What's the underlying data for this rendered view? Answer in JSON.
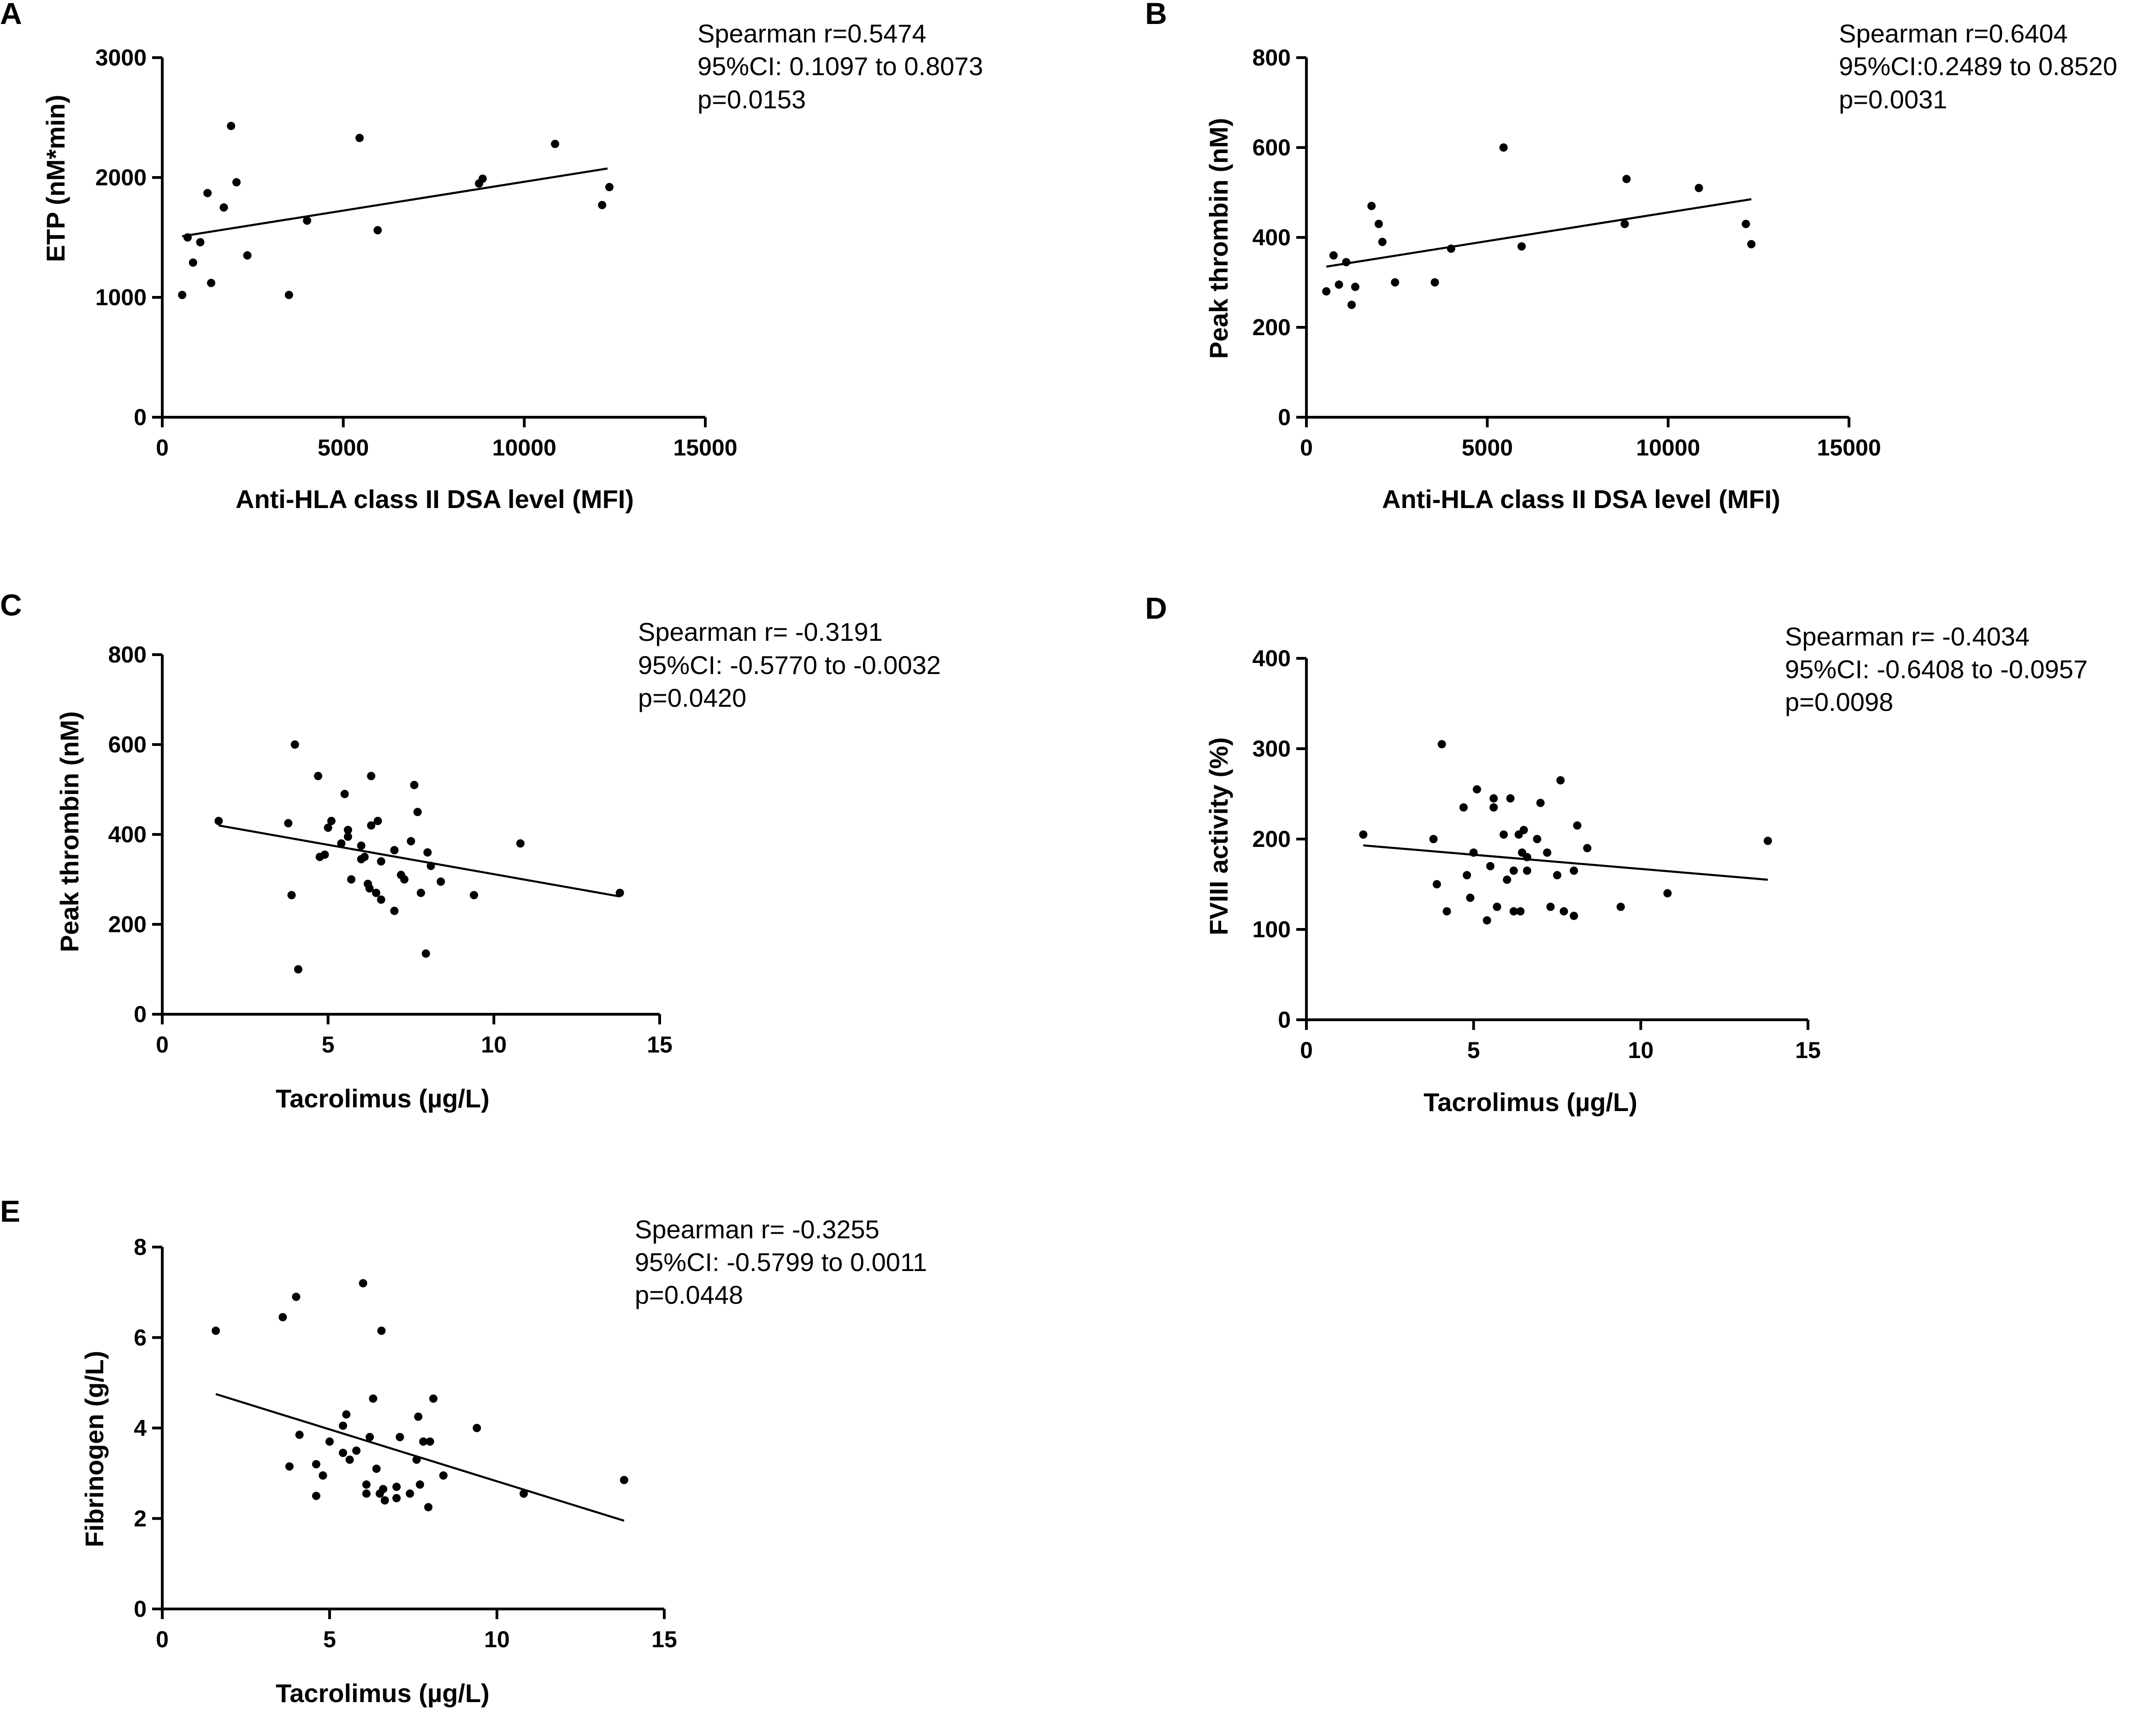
{
  "chart_data": [
    {
      "type": "scatter",
      "panel": "A",
      "xlabel": "Anti-HLA class II DSA level (MFI)",
      "ylabel": "ETP (nM*min)",
      "xlim": [
        0,
        15000
      ],
      "ylim": [
        0,
        3000
      ],
      "xticks": [
        0,
        5000,
        10000,
        15000
      ],
      "yticks": [
        0,
        1000,
        2000,
        3000
      ],
      "stats": [
        "Spearman r=0.5474",
        "95%CI: 0.1097 to 0.8073",
        "p=0.0153"
      ],
      "points": [
        [
          550,
          1020
        ],
        [
          700,
          1500
        ],
        [
          850,
          1290
        ],
        [
          1050,
          1460
        ],
        [
          1250,
          1870
        ],
        [
          1350,
          1120
        ],
        [
          1700,
          1750
        ],
        [
          1900,
          2430
        ],
        [
          2050,
          1960
        ],
        [
          2350,
          1350
        ],
        [
          3500,
          1020
        ],
        [
          4000,
          1640
        ],
        [
          5450,
          2330
        ],
        [
          5950,
          1560
        ],
        [
          8750,
          1950
        ],
        [
          8850,
          1990
        ],
        [
          10850,
          2280
        ],
        [
          12150,
          1770
        ],
        [
          12350,
          1920
        ]
      ],
      "fit": [
        [
          550,
          1510
        ],
        [
          12300,
          2075
        ]
      ]
    },
    {
      "type": "scatter",
      "panel": "B",
      "xlabel": "Anti-HLA class II DSA level (MFI)",
      "ylabel": "Peak thrombin (nM)",
      "xlim": [
        0,
        15000
      ],
      "ylim": [
        0,
        800
      ],
      "xticks": [
        0,
        5000,
        10000,
        15000
      ],
      "yticks": [
        0,
        200,
        400,
        600,
        800
      ],
      "stats": [
        "Spearman r=0.6404",
        "95%CI:0.2489 to 0.8520",
        "p=0.0031"
      ],
      "points": [
        [
          550,
          280
        ],
        [
          750,
          360
        ],
        [
          900,
          295
        ],
        [
          1100,
          345
        ],
        [
          1250,
          250
        ],
        [
          1350,
          290
        ],
        [
          1800,
          470
        ],
        [
          2000,
          430
        ],
        [
          2100,
          390
        ],
        [
          2450,
          300
        ],
        [
          3550,
          300
        ],
        [
          4000,
          375
        ],
        [
          5450,
          600
        ],
        [
          5950,
          380
        ],
        [
          8800,
          430
        ],
        [
          8850,
          530
        ],
        [
          10850,
          510
        ],
        [
          12150,
          430
        ],
        [
          12300,
          385
        ]
      ],
      "fit": [
        [
          550,
          335
        ],
        [
          12300,
          485
        ]
      ]
    },
    {
      "type": "scatter",
      "panel": "C",
      "xlabel": "Tacrolimus (µg/L)",
      "ylabel": "Peak thrombin (nM)",
      "xlim": [
        0,
        15
      ],
      "ylim": [
        0,
        800
      ],
      "xticks": [
        0,
        5,
        10,
        15
      ],
      "yticks": [
        0,
        200,
        400,
        600,
        800
      ],
      "stats": [
        "Spearman r= -0.3191",
        "95%CI: -0.5770 to -0.0032",
        "p=0.0420"
      ],
      "points": [
        [
          1.7,
          430
        ],
        [
          3.8,
          425
        ],
        [
          3.9,
          265
        ],
        [
          4.0,
          600
        ],
        [
          4.1,
          100
        ],
        [
          4.7,
          530
        ],
        [
          4.75,
          350
        ],
        [
          4.9,
          355
        ],
        [
          5.0,
          415
        ],
        [
          5.1,
          430
        ],
        [
          5.4,
          380
        ],
        [
          5.5,
          490
        ],
        [
          5.6,
          395
        ],
        [
          5.6,
          410
        ],
        [
          5.7,
          300
        ],
        [
          6.0,
          345
        ],
        [
          6.0,
          375
        ],
        [
          6.1,
          350
        ],
        [
          6.2,
          290
        ],
        [
          6.25,
          280
        ],
        [
          6.3,
          420
        ],
        [
          6.3,
          530
        ],
        [
          6.45,
          270
        ],
        [
          6.5,
          430
        ],
        [
          6.6,
          340
        ],
        [
          6.6,
          255
        ],
        [
          7.0,
          365
        ],
        [
          7.0,
          230
        ],
        [
          7.2,
          310
        ],
        [
          7.3,
          300
        ],
        [
          7.5,
          385
        ],
        [
          7.6,
          510
        ],
        [
          7.7,
          450
        ],
        [
          7.8,
          270
        ],
        [
          7.95,
          135
        ],
        [
          8.0,
          360
        ],
        [
          8.1,
          330
        ],
        [
          8.4,
          295
        ],
        [
          9.4,
          265
        ],
        [
          10.8,
          380
        ],
        [
          13.8,
          270
        ]
      ],
      "fit": [
        [
          1.7,
          420
        ],
        [
          13.8,
          262
        ]
      ]
    },
    {
      "type": "scatter",
      "panel": "D",
      "xlabel": "Tacrolimus (µg/L)",
      "ylabel": "FVIII activity (%)",
      "xlim": [
        0,
        15
      ],
      "ylim": [
        0,
        400
      ],
      "xticks": [
        0,
        5,
        10,
        15
      ],
      "yticks": [
        0,
        100,
        200,
        300,
        400
      ],
      "stats": [
        "Spearman r= -0.4034",
        "95%CI: -0.6408 to -0.0957",
        "p=0.0098"
      ],
      "points": [
        [
          1.7,
          205
        ],
        [
          3.8,
          200
        ],
        [
          3.9,
          150
        ],
        [
          4.05,
          305
        ],
        [
          4.2,
          120
        ],
        [
          4.7,
          235
        ],
        [
          4.8,
          160
        ],
        [
          4.9,
          135
        ],
        [
          5.0,
          185
        ],
        [
          5.1,
          255
        ],
        [
          5.4,
          110
        ],
        [
          5.5,
          170
        ],
        [
          5.6,
          235
        ],
        [
          5.6,
          245
        ],
        [
          5.7,
          125
        ],
        [
          5.9,
          205
        ],
        [
          6.0,
          155
        ],
        [
          6.1,
          245
        ],
        [
          6.2,
          120
        ],
        [
          6.2,
          165
        ],
        [
          6.35,
          205
        ],
        [
          6.4,
          120
        ],
        [
          6.45,
          185
        ],
        [
          6.5,
          210
        ],
        [
          6.6,
          180
        ],
        [
          6.6,
          165
        ],
        [
          6.9,
          200
        ],
        [
          7.0,
          240
        ],
        [
          7.2,
          185
        ],
        [
          7.3,
          125
        ],
        [
          7.5,
          160
        ],
        [
          7.6,
          265
        ],
        [
          7.7,
          120
        ],
        [
          8.0,
          115
        ],
        [
          8.0,
          165
        ],
        [
          8.1,
          215
        ],
        [
          8.4,
          190
        ],
        [
          9.4,
          125
        ],
        [
          10.8,
          140
        ],
        [
          13.8,
          198
        ]
      ],
      "fit": [
        [
          1.7,
          193
        ],
        [
          13.8,
          155
        ]
      ]
    },
    {
      "type": "scatter",
      "panel": "E",
      "xlabel": "Tacrolimus (µg/L)",
      "ylabel": "Fibrinogen (g/L)",
      "xlim": [
        0,
        15
      ],
      "ylim": [
        0,
        8
      ],
      "xticks": [
        0,
        5,
        10,
        15
      ],
      "yticks": [
        0,
        2,
        4,
        6,
        8
      ],
      "stats": [
        "Spearman r= -0.3255",
        "95%CI: -0.5799 to 0.0011",
        "p=0.0448"
      ],
      "points": [
        [
          1.6,
          6.15
        ],
        [
          3.6,
          6.45
        ],
        [
          3.8,
          3.15
        ],
        [
          4.0,
          6.9
        ],
        [
          4.1,
          3.85
        ],
        [
          4.6,
          3.2
        ],
        [
          4.6,
          2.5
        ],
        [
          4.8,
          2.95
        ],
        [
          4.8,
          2.95
        ],
        [
          5.0,
          3.7
        ],
        [
          5.4,
          3.45
        ],
        [
          5.4,
          4.05
        ],
        [
          5.5,
          4.3
        ],
        [
          5.6,
          3.3
        ],
        [
          5.8,
          3.5
        ],
        [
          6.0,
          7.2
        ],
        [
          6.1,
          2.75
        ],
        [
          6.1,
          2.55
        ],
        [
          6.2,
          3.8
        ],
        [
          6.3,
          4.65
        ],
        [
          6.4,
          3.1
        ],
        [
          6.5,
          2.55
        ],
        [
          6.55,
          6.15
        ],
        [
          6.6,
          2.65
        ],
        [
          6.65,
          2.4
        ],
        [
          7.0,
          2.7
        ],
        [
          7.0,
          2.45
        ],
        [
          7.1,
          3.8
        ],
        [
          7.4,
          2.55
        ],
        [
          7.6,
          3.3
        ],
        [
          7.65,
          4.25
        ],
        [
          7.7,
          2.75
        ],
        [
          7.8,
          3.7
        ],
        [
          7.95,
          2.25
        ],
        [
          8.0,
          3.7
        ],
        [
          8.1,
          4.65
        ],
        [
          8.4,
          2.95
        ],
        [
          9.4,
          4.0
        ],
        [
          10.8,
          2.55
        ],
        [
          13.8,
          2.85
        ]
      ],
      "fit": [
        [
          1.6,
          4.75
        ],
        [
          13.8,
          1.95
        ]
      ]
    }
  ]
}
